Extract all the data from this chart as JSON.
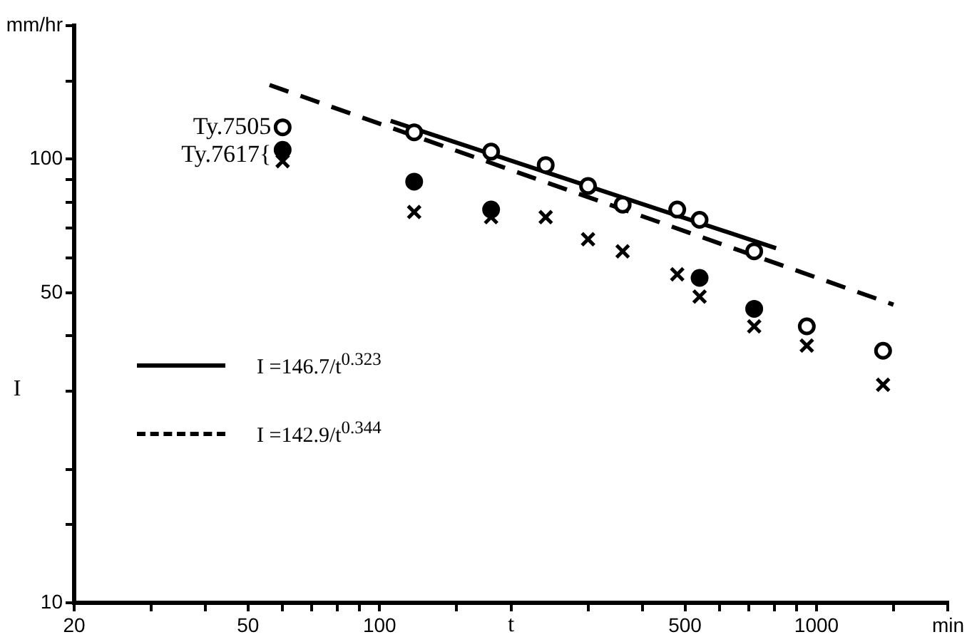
{
  "chart_data": {
    "type": "scatter",
    "xlabel": "t",
    "ylabel": "I",
    "log": "xy",
    "grid": false,
    "legend": "left",
    "xlim": [
      20,
      2000
    ],
    "ylim": [
      10,
      200
    ],
    "xticks": [
      20,
      {
        "value": 30,
        "label": null
      },
      {
        "value": 40,
        "label": null
      },
      50,
      {
        "value": 60,
        "label": null
      },
      {
        "value": 70,
        "label": null
      },
      {
        "value": 80,
        "label": null
      },
      {
        "value": 90,
        "label": null
      },
      100,
      {
        "value": 150,
        "label": null
      },
      {
        "value": 200,
        "label": null
      },
      {
        "value": 300,
        "label": null
      },
      {
        "value": 400,
        "label": null
      },
      500,
      {
        "value": 600,
        "label": null
      },
      {
        "value": 700,
        "label": null
      },
      {
        "value": 800,
        "label": null
      },
      {
        "value": 900,
        "label": null
      },
      1000,
      {
        "value": 1500,
        "label": null
      },
      {
        "value": 2000,
        "label": "min"
      }
    ],
    "yticks": [
      10,
      {
        "value": 15,
        "label": null
      },
      {
        "value": 20,
        "label": null
      },
      {
        "value": 30,
        "label": null
      },
      {
        "value": 40,
        "label": null
      },
      50,
      {
        "value": 60,
        "label": null
      },
      {
        "value": 70,
        "label": null
      },
      {
        "value": 80,
        "label": null
      },
      {
        "value": 90,
        "label": null
      },
      100,
      {
        "value": 150,
        "label": null
      },
      {
        "value": 200,
        "label": "mm/hr"
      }
    ],
    "series": [
      {
        "type": "scatter",
        "marker": "circle",
        "color": "#ffffff",
        "x": [
          60,
          120,
          180,
          240,
          300,
          360,
          480,
          540,
          720,
          950,
          1420
        ],
        "values": [
          118,
          115,
          104,
          97,
          87,
          79,
          77,
          73,
          62,
          42,
          37
        ]
      },
      {
        "type": "scatter",
        "marker": "circle",
        "color": "#000000",
        "x": [
          60,
          120,
          180,
          540,
          720
        ],
        "values": [
          105,
          89,
          77,
          54,
          46
        ]
      },
      {
        "type": "scatter",
        "marker": "cross",
        "color": "#000000",
        "x": [
          60,
          120,
          180,
          240,
          300,
          360,
          480,
          540,
          720,
          950,
          1420
        ],
        "values": [
          99,
          76,
          74,
          74,
          66,
          62,
          55,
          49,
          42,
          38,
          31
        ]
      },
      {
        "type": "line",
        "name": "I =146.7/t$^{0.323}$",
        "marker": "none",
        "line_style": "solid",
        "color": "#000000",
        "x": [
          106,
          808
        ],
        "values": [
          122,
          63
        ]
      },
      {
        "type": "line",
        "name": "I =142.9/t$^{0.344}$",
        "marker": "none",
        "line_style": "dashed",
        "color": "#000000",
        "x": [
          56,
          1500
        ],
        "values": [
          147,
          47
        ]
      }
    ],
    "annotations": [
      {
        "text": "Ty.7505",
        "x": 60,
        "y": 118
      },
      {
        "text": "Ty.7617{",
        "x": 60,
        "y": 102
      }
    ]
  }
}
